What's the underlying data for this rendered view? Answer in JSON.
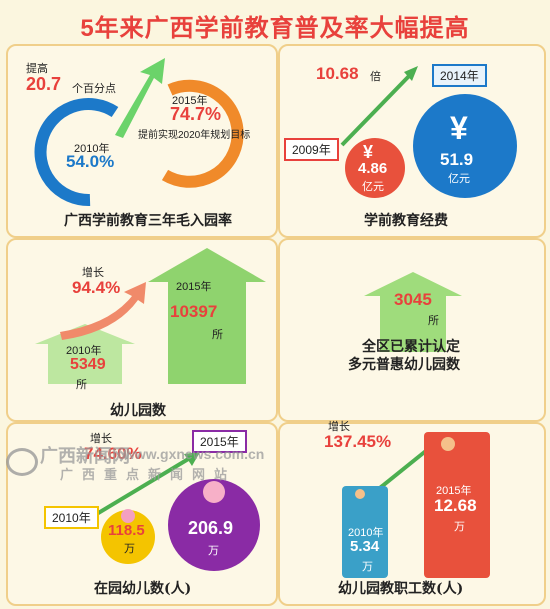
{
  "title": "5年来广西学前教育普及率大幅提高",
  "enrollment_rate": {
    "increase_label": "提高",
    "increase_value": "20.7",
    "increase_unit": "个百分点",
    "year_2010": "2010年",
    "value_2010": "54.0%",
    "year_2015": "2015年",
    "value_2015": "74.7%",
    "note": "提前实现2020年规划目标",
    "caption": "广西学前教育三年毛入园率"
  },
  "funding": {
    "multiple_value": "10.68",
    "multiple_unit": "倍",
    "year_2009": "2009年",
    "year_2014": "2014年",
    "value_2009": "4.86",
    "value_2014": "51.9",
    "unit": "亿元",
    "currency_symbol": "¥",
    "caption": "学前教育经费"
  },
  "kindergartens": {
    "growth_label": "增长",
    "growth_value": "94.4%",
    "year_2010": "2010年",
    "value_2010": "5349",
    "year_2015": "2015年",
    "value_2015": "10397",
    "unit": "所",
    "caption": "幼儿园数"
  },
  "inclusive": {
    "value": "3045",
    "unit": "所",
    "caption_line1": "全区已累计认定",
    "caption_line2": "多元普惠幼儿园数"
  },
  "children": {
    "growth_label": "增长",
    "growth_value": "74.60%",
    "year_2010": "2010年",
    "value_2010": "118.5",
    "year_2015": "2015年",
    "value_2015": "206.9",
    "unit": "万",
    "caption": "在园幼儿数(人)"
  },
  "staff": {
    "growth_label": "增长",
    "growth_value": "137.45%",
    "year_2010": "2010年",
    "value_2010": "5.34",
    "year_2015": "2015年",
    "value_2015": "12.68",
    "unit": "万",
    "caption": "幼儿园教职工数(人)"
  },
  "watermark": {
    "line1": "广西新闻网",
    "line2": "www.gxnews.com.cn",
    "line3": "广西重点新闻网站"
  },
  "colors": {
    "red": "#e8413c",
    "blue": "#1c79c9",
    "green": "#4caf50",
    "purple": "#8a2ba5",
    "orange": "#f08a2a"
  }
}
